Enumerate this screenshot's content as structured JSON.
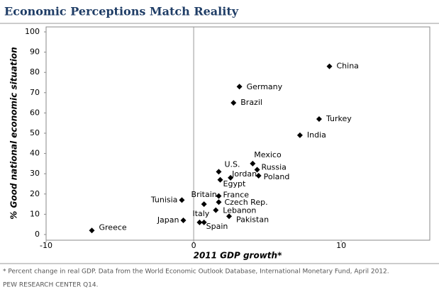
{
  "chart_data": {
    "type": "scatter",
    "title": "Economic Perceptions Match Reality",
    "x_label": "2011 GDP growth*",
    "y_label": "% Good national economic situation",
    "footnote": "* Percent change in real GDP.  Data from the World Economic Outlook Database, International Monetary Fund, April 2012.",
    "source": "PEW RESEARCH CENTER Q14.",
    "xlim": [
      -10,
      16
    ],
    "xticks": [
      -10,
      0,
      10
    ],
    "ylim": [
      0,
      100
    ],
    "yticks": [
      0,
      10,
      20,
      30,
      40,
      50,
      60,
      70,
      80,
      90,
      100
    ],
    "series": [
      {
        "color": "#000000",
        "labels": [
          "China",
          "Germany",
          "Brazil",
          "Turkey",
          "India",
          "Mexico",
          "Russia",
          "Poland",
          "U.S.",
          "Jordan",
          "Egypt",
          "France",
          "Britain",
          "Czech Rep.",
          "Tunisia",
          "Lebanon",
          "Pakistan",
          "Italy",
          "Spain",
          "Japan",
          "Greece"
        ],
        "x": [
          9.2,
          3.1,
          2.7,
          8.5,
          7.2,
          4.0,
          4.3,
          4.4,
          1.7,
          2.5,
          1.8,
          1.7,
          0.7,
          1.7,
          -0.8,
          1.5,
          2.4,
          0.4,
          0.7,
          -0.7,
          -6.9
        ],
        "values": [
          83,
          73,
          65,
          57,
          49,
          35,
          32,
          29,
          31,
          28,
          27,
          19,
          15,
          16,
          17,
          12,
          9,
          6,
          6,
          7,
          2
        ]
      }
    ]
  }
}
